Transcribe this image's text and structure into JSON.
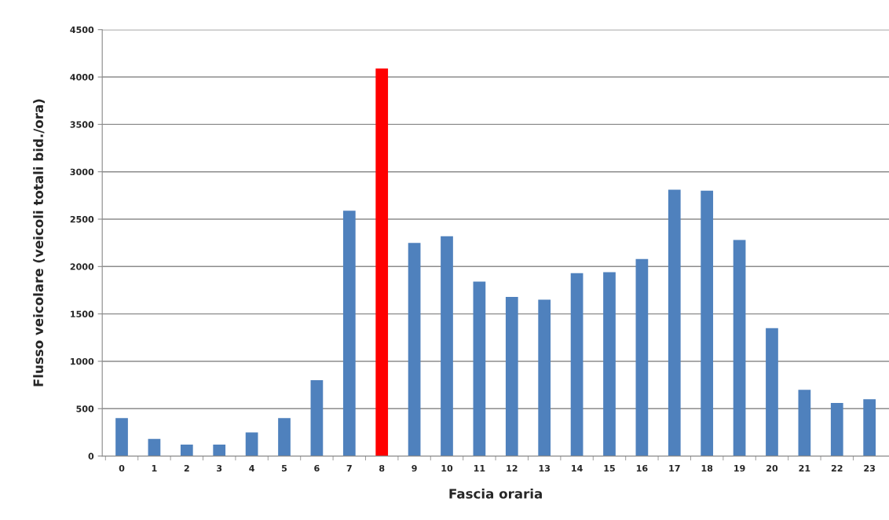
{
  "chart_data": {
    "type": "bar",
    "xlabel": "Fascia oraria",
    "ylabel": "Flusso veicolare (veicoli totali bid./ora)",
    "categories": [
      "0",
      "1",
      "2",
      "3",
      "4",
      "5",
      "6",
      "7",
      "8",
      "9",
      "10",
      "11",
      "12",
      "13",
      "14",
      "15",
      "16",
      "17",
      "18",
      "19",
      "20",
      "21",
      "22",
      "23"
    ],
    "values": [
      400,
      180,
      120,
      120,
      250,
      400,
      800,
      2590,
      4090,
      2250,
      2320,
      1840,
      1680,
      1650,
      1930,
      1940,
      2080,
      2810,
      2800,
      2280,
      1350,
      700,
      560,
      600
    ],
    "colors": [
      "#4f81bd",
      "#4f81bd",
      "#4f81bd",
      "#4f81bd",
      "#4f81bd",
      "#4f81bd",
      "#4f81bd",
      "#4f81bd",
      "#ff0000",
      "#4f81bd",
      "#4f81bd",
      "#4f81bd",
      "#4f81bd",
      "#4f81bd",
      "#4f81bd",
      "#4f81bd",
      "#4f81bd",
      "#4f81bd",
      "#4f81bd",
      "#4f81bd",
      "#4f81bd",
      "#4f81bd",
      "#4f81bd",
      "#4f81bd"
    ],
    "ylim": [
      0,
      4500
    ],
    "yticks": [
      0,
      500,
      1000,
      1500,
      2000,
      2500,
      3000,
      3500,
      4000,
      4500
    ],
    "grid": "y"
  }
}
